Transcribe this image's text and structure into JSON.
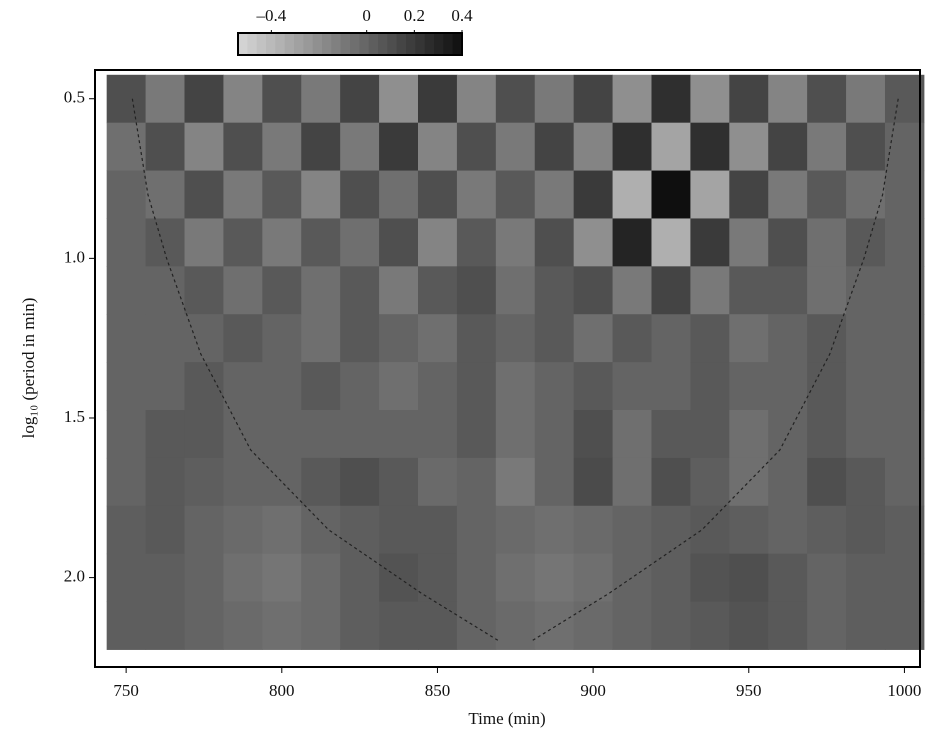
{
  "chart_data": {
    "type": "heatmap",
    "xlabel": "Time (min)",
    "ylabel": "log₁₀ (period in min)",
    "xlim": [
      740,
      1005
    ],
    "xticks": [
      750,
      800,
      850,
      900,
      950,
      1000
    ],
    "ylim": [
      2.28,
      0.41
    ],
    "yticks": [
      0.5,
      {
        "value": 1,
        "label": "1.0"
      },
      1.5,
      {
        "value": 2,
        "label": "2.0"
      }
    ],
    "x": [
      750,
      762.5,
      775,
      787.5,
      800,
      812.5,
      825,
      837.5,
      850,
      862.5,
      875,
      887.5,
      900,
      912.5,
      925,
      937.5,
      950,
      962.5,
      975,
      987.5,
      1000
    ],
    "y": [
      0.5,
      0.65,
      0.8,
      0.95,
      1.1,
      1.25,
      1.4,
      1.55,
      1.7,
      1.85,
      2.0,
      2.15
    ],
    "z": [
      [
        0.1,
        -0.1,
        0.15,
        -0.15,
        0.1,
        -0.1,
        0.15,
        -0.2,
        0.2,
        -0.15,
        0.1,
        -0.1,
        0.15,
        -0.2,
        0.25,
        -0.2,
        0.15,
        -0.15,
        0.1,
        -0.1,
        0.05
      ],
      [
        -0.05,
        0.1,
        -0.15,
        0.1,
        -0.1,
        0.15,
        -0.1,
        0.2,
        -0.15,
        0.1,
        -0.1,
        0.15,
        -0.15,
        0.25,
        -0.3,
        0.25,
        -0.2,
        0.15,
        -0.1,
        0.1,
        0
      ],
      [
        0,
        -0.05,
        0.1,
        -0.1,
        0.05,
        -0.15,
        0.1,
        -0.05,
        0.1,
        -0.1,
        0.05,
        -0.1,
        0.2,
        -0.35,
        0.4,
        -0.3,
        0.15,
        -0.1,
        0.05,
        -0.05,
        0
      ],
      [
        0,
        0.05,
        -0.1,
        0.05,
        -0.1,
        0.05,
        -0.05,
        0.1,
        -0.15,
        0.05,
        -0.1,
        0.1,
        -0.2,
        0.3,
        -0.35,
        0.2,
        -0.1,
        0.1,
        -0.05,
        0.05,
        0
      ],
      [
        0,
        0,
        0.05,
        -0.05,
        0.05,
        -0.05,
        0.05,
        -0.1,
        0.05,
        0.1,
        -0.05,
        0.05,
        0.1,
        -0.1,
        0.15,
        -0.1,
        0.05,
        0.05,
        -0.05,
        0,
        0
      ],
      [
        0,
        0,
        0,
        0.05,
        0,
        -0.05,
        0.05,
        0,
        -0.05,
        0.05,
        0,
        0.05,
        -0.05,
        0.05,
        0,
        0.05,
        -0.05,
        0,
        0.05,
        0,
        0
      ],
      [
        0,
        0,
        0.05,
        0,
        0,
        0.05,
        0,
        -0.05,
        0,
        0.05,
        -0.05,
        0,
        0.05,
        0,
        0,
        0.05,
        0,
        0,
        0.05,
        0,
        0
      ],
      [
        0,
        0.05,
        0.05,
        0,
        0,
        0,
        0,
        0,
        0,
        0.05,
        -0.05,
        0,
        0.1,
        -0.05,
        0.05,
        0.05,
        -0.05,
        0,
        0.05,
        0,
        0
      ],
      [
        0,
        0.05,
        0.03,
        0,
        0,
        0.05,
        0.1,
        0.05,
        -0.03,
        0,
        -0.1,
        0,
        0.12,
        -0.05,
        0.1,
        0.03,
        -0.05,
        0,
        0.1,
        0.05,
        0
      ],
      [
        0.03,
        0.05,
        0,
        -0.03,
        -0.05,
        0,
        0.03,
        0.05,
        0.05,
        0,
        -0.03,
        -0.05,
        -0.03,
        0,
        0.03,
        0.05,
        0.03,
        0,
        0.03,
        0.05,
        0.03
      ],
      [
        0.03,
        0.03,
        0,
        -0.05,
        -0.08,
        -0.03,
        0.03,
        0.08,
        0.05,
        0,
        -0.05,
        -0.08,
        -0.05,
        0,
        0.03,
        0.08,
        0.1,
        0.05,
        0,
        0.03,
        0.03
      ],
      [
        0.03,
        0.03,
        0,
        -0.03,
        -0.05,
        -0.03,
        0.03,
        0.05,
        0.05,
        0,
        -0.03,
        -0.05,
        -0.03,
        0,
        0.03,
        0.05,
        0.08,
        0.05,
        0,
        0.03,
        0.03
      ]
    ],
    "cone": [
      {
        "x": [
          752,
          757,
          763,
          774,
          790,
          815,
          845,
          870
        ],
        "y": [
          0.5,
          0.8,
          1.0,
          1.3,
          1.6,
          1.85,
          2.05,
          2.2
        ]
      },
      {
        "x": [
          998,
          993,
          987,
          976,
          960,
          935,
          905,
          880
        ],
        "y": [
          0.5,
          0.8,
          1.0,
          1.3,
          1.6,
          1.85,
          2.05,
          2.2
        ]
      }
    ],
    "colorbar": {
      "clim": [
        -0.54,
        0.4
      ],
      "ticks": [
        {
          "value": -0.4,
          "label": "–0.4"
        },
        0,
        0.2,
        0.4
      ]
    }
  }
}
